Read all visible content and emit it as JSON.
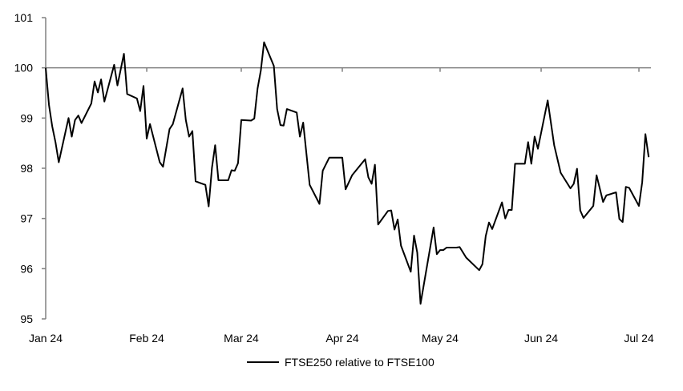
{
  "chart_data": {
    "type": "line",
    "title": "",
    "xlabel": "",
    "ylabel": "",
    "ylim": [
      95,
      101
    ],
    "yticks": [
      95,
      96,
      97,
      98,
      99,
      100,
      101
    ],
    "xlim": [
      "2024-01-01",
      "2024-07-05"
    ],
    "xticks": [
      {
        "date": "2024-01-01",
        "label": "Jan 24"
      },
      {
        "date": "2024-02-01",
        "label": "Feb 24"
      },
      {
        "date": "2024-03-01",
        "label": "Mar 24"
      },
      {
        "date": "2024-04-01",
        "label": "Apr 24"
      },
      {
        "date": "2024-05-01",
        "label": "May 24"
      },
      {
        "date": "2024-06-01",
        "label": "Jun 24"
      },
      {
        "date": "2024-07-01",
        "label": "Jul 24"
      }
    ],
    "reference_line": 100,
    "grid": false,
    "legend_position": "bottom",
    "colors": {
      "series": "#000000",
      "axis": "#808080"
    },
    "series": [
      {
        "name": "FTSE250 relative to FTSE100",
        "points": [
          [
            "2024-01-01",
            100.0
          ],
          [
            "2024-01-02",
            99.26
          ],
          [
            "2024-01-03",
            98.84
          ],
          [
            "2024-01-04",
            98.52
          ],
          [
            "2024-01-05",
            98.12
          ],
          [
            "2024-01-08",
            99.0
          ],
          [
            "2024-01-09",
            98.63
          ],
          [
            "2024-01-10",
            98.96
          ],
          [
            "2024-01-11",
            99.05
          ],
          [
            "2024-01-12",
            98.9
          ],
          [
            "2024-01-15",
            99.29
          ],
          [
            "2024-01-16",
            99.73
          ],
          [
            "2024-01-17",
            99.51
          ],
          [
            "2024-01-18",
            99.77
          ],
          [
            "2024-01-19",
            99.33
          ],
          [
            "2024-01-22",
            100.06
          ],
          [
            "2024-01-23",
            99.65
          ],
          [
            "2024-01-25",
            100.28
          ],
          [
            "2024-01-26",
            99.48
          ],
          [
            "2024-01-29",
            99.39
          ],
          [
            "2024-01-30",
            99.14
          ],
          [
            "2024-01-31",
            99.64
          ],
          [
            "2024-02-01",
            98.59
          ],
          [
            "2024-02-02",
            98.88
          ],
          [
            "2024-02-05",
            98.12
          ],
          [
            "2024-02-06",
            98.03
          ],
          [
            "2024-02-08",
            98.78
          ],
          [
            "2024-02-09",
            98.88
          ],
          [
            "2024-02-12",
            99.59
          ],
          [
            "2024-02-13",
            98.96
          ],
          [
            "2024-02-14",
            98.63
          ],
          [
            "2024-02-15",
            98.74
          ],
          [
            "2024-02-16",
            97.74
          ],
          [
            "2024-02-19",
            97.67
          ],
          [
            "2024-02-20",
            97.24
          ],
          [
            "2024-02-21",
            98.01
          ],
          [
            "2024-02-22",
            98.46
          ],
          [
            "2024-02-23",
            97.76
          ],
          [
            "2024-02-26",
            97.76
          ],
          [
            "2024-02-27",
            97.96
          ],
          [
            "2024-02-28",
            97.95
          ],
          [
            "2024-02-29",
            98.1
          ],
          [
            "2024-03-01",
            98.96
          ],
          [
            "2024-03-04",
            98.95
          ],
          [
            "2024-03-05",
            98.99
          ],
          [
            "2024-03-06",
            99.59
          ],
          [
            "2024-03-07",
            99.95
          ],
          [
            "2024-03-08",
            100.51
          ],
          [
            "2024-03-11",
            100.04
          ],
          [
            "2024-03-12",
            99.18
          ],
          [
            "2024-03-13",
            98.86
          ],
          [
            "2024-03-14",
            98.85
          ],
          [
            "2024-03-15",
            99.18
          ],
          [
            "2024-03-18",
            99.11
          ],
          [
            "2024-03-19",
            98.63
          ],
          [
            "2024-03-20",
            98.91
          ],
          [
            "2024-03-22",
            97.67
          ],
          [
            "2024-03-25",
            97.29
          ],
          [
            "2024-03-26",
            97.95
          ],
          [
            "2024-03-28",
            98.21
          ],
          [
            "2024-04-01",
            98.21
          ],
          [
            "2024-04-02",
            97.58
          ],
          [
            "2024-04-04",
            97.86
          ],
          [
            "2024-04-08",
            98.18
          ],
          [
            "2024-04-09",
            97.82
          ],
          [
            "2024-04-10",
            97.69
          ],
          [
            "2024-04-11",
            98.07
          ],
          [
            "2024-04-12",
            96.88
          ],
          [
            "2024-04-15",
            97.15
          ],
          [
            "2024-04-16",
            97.16
          ],
          [
            "2024-04-17",
            96.78
          ],
          [
            "2024-04-18",
            96.98
          ],
          [
            "2024-04-19",
            96.46
          ],
          [
            "2024-04-22",
            95.94
          ],
          [
            "2024-04-23",
            96.66
          ],
          [
            "2024-04-24",
            96.32
          ],
          [
            "2024-04-25",
            95.3
          ],
          [
            "2024-04-29",
            96.82
          ],
          [
            "2024-04-30",
            96.29
          ],
          [
            "2024-05-01",
            96.37
          ],
          [
            "2024-05-02",
            96.37
          ],
          [
            "2024-05-03",
            96.42
          ],
          [
            "2024-05-06",
            96.42
          ],
          [
            "2024-05-07",
            96.43
          ],
          [
            "2024-05-09",
            96.22
          ],
          [
            "2024-05-13",
            95.97
          ],
          [
            "2024-05-14",
            96.09
          ],
          [
            "2024-05-15",
            96.65
          ],
          [
            "2024-05-16",
            96.92
          ],
          [
            "2024-05-17",
            96.79
          ],
          [
            "2024-05-20",
            97.32
          ],
          [
            "2024-05-21",
            97.0
          ],
          [
            "2024-05-22",
            97.17
          ],
          [
            "2024-05-23",
            97.17
          ],
          [
            "2024-05-24",
            98.09
          ],
          [
            "2024-05-27",
            98.09
          ],
          [
            "2024-05-28",
            98.52
          ],
          [
            "2024-05-29",
            98.09
          ],
          [
            "2024-05-30",
            98.63
          ],
          [
            "2024-05-31",
            98.39
          ],
          [
            "2024-06-03",
            99.35
          ],
          [
            "2024-06-05",
            98.46
          ],
          [
            "2024-06-07",
            97.91
          ],
          [
            "2024-06-10",
            97.6
          ],
          [
            "2024-06-11",
            97.69
          ],
          [
            "2024-06-12",
            97.99
          ],
          [
            "2024-06-13",
            97.16
          ],
          [
            "2024-06-14",
            97.01
          ],
          [
            "2024-06-17",
            97.25
          ],
          [
            "2024-06-18",
            97.86
          ],
          [
            "2024-06-20",
            97.33
          ],
          [
            "2024-06-21",
            97.46
          ],
          [
            "2024-06-24",
            97.52
          ],
          [
            "2024-06-25",
            96.99
          ],
          [
            "2024-06-26",
            96.93
          ],
          [
            "2024-06-27",
            97.63
          ],
          [
            "2024-06-28",
            97.61
          ],
          [
            "2024-07-01",
            97.25
          ],
          [
            "2024-07-02",
            97.72
          ],
          [
            "2024-07-03",
            98.68
          ],
          [
            "2024-07-04",
            98.22
          ]
        ]
      }
    ]
  }
}
